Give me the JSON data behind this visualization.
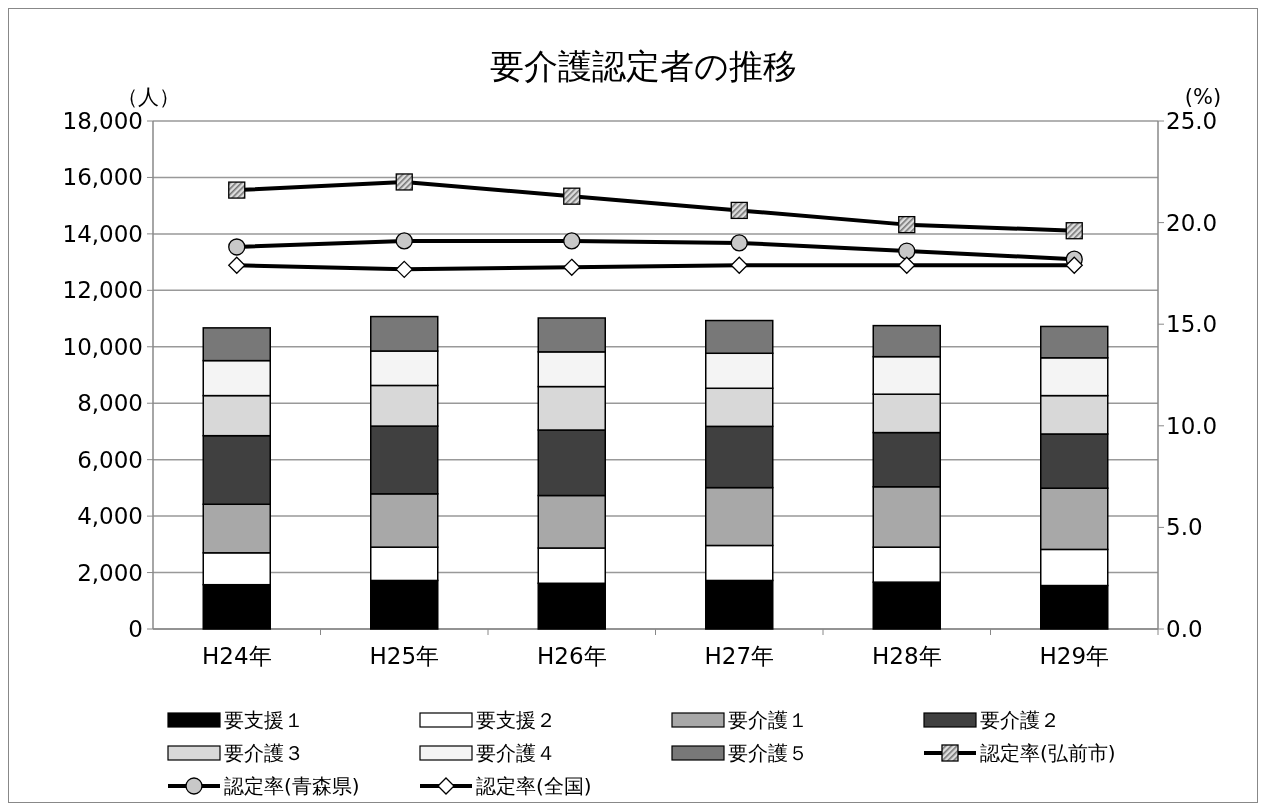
{
  "chart_data": {
    "type": "bar",
    "stacked": true,
    "title": "要介護認定者の推移",
    "ylabel": "（人）",
    "y2label": "(%)",
    "categories": [
      "H24年",
      "H25年",
      "H26年",
      "H27年",
      "H28年",
      "H29年"
    ],
    "ylim": [
      0,
      18000
    ],
    "yticks": [
      {
        "value": 0,
        "label": "0"
      },
      {
        "value": 2000,
        "label": "2,000"
      },
      {
        "value": 4000,
        "label": "4,000"
      },
      {
        "value": 6000,
        "label": "6,000"
      },
      {
        "value": 8000,
        "label": "8,000"
      },
      {
        "value": 10000,
        "label": "10,000"
      },
      {
        "value": 12000,
        "label": "12,000"
      },
      {
        "value": 14000,
        "label": "14,000"
      },
      {
        "value": 16000,
        "label": "16,000"
      },
      {
        "value": 18000,
        "label": "18,000"
      }
    ],
    "y2lim": [
      0,
      25
    ],
    "y2ticks": [
      {
        "value": 0,
        "label": "0.0"
      },
      {
        "value": 5,
        "label": "5.0"
      },
      {
        "value": 10,
        "label": "10.0"
      },
      {
        "value": 15,
        "label": "15.0"
      },
      {
        "value": 20,
        "label": "20.0"
      },
      {
        "value": 25,
        "label": "25.0"
      }
    ],
    "grid": "y",
    "legend": "bottom",
    "series": [
      {
        "name": "要支援１",
        "color": "#000000",
        "values": [
          1570,
          1720,
          1620,
          1720,
          1660,
          1540
        ]
      },
      {
        "name": "要支援２",
        "color": "#ffffff",
        "values": [
          1130,
          1180,
          1250,
          1240,
          1240,
          1280
        ]
      },
      {
        "name": "要介護１",
        "color": "#a8a8a8",
        "values": [
          1720,
          1890,
          1860,
          2050,
          2140,
          2170
        ]
      },
      {
        "name": "要介護２",
        "color": "#404040",
        "values": [
          2430,
          2400,
          2320,
          2170,
          1920,
          1920
        ]
      },
      {
        "name": "要介護３",
        "color": "#d8d8d8",
        "values": [
          1420,
          1440,
          1540,
          1350,
          1360,
          1360
        ]
      },
      {
        "name": "要介護４",
        "color": "#f4f4f4",
        "values": [
          1240,
          1220,
          1230,
          1240,
          1330,
          1340
        ]
      },
      {
        "name": "要介護５",
        "color": "#787878",
        "values": [
          1160,
          1220,
          1200,
          1160,
          1100,
          1110
        ]
      },
      {
        "name": "認定率(弘前市)",
        "type": "line",
        "axis": "y2",
        "color": "#000000",
        "marker": "square",
        "values": [
          21.6,
          22.0,
          21.3,
          20.6,
          19.9,
          19.6
        ]
      },
      {
        "name": "認定率(青森県)",
        "type": "line",
        "axis": "y2",
        "color": "#000000",
        "marker": "circle",
        "values": [
          18.8,
          19.1,
          19.1,
          19.0,
          18.6,
          18.2
        ]
      },
      {
        "name": "認定率(全国)",
        "type": "line",
        "axis": "y2",
        "color": "#000000",
        "marker": "diamond",
        "values": [
          17.9,
          17.7,
          17.8,
          17.9,
          17.9,
          17.9
        ]
      }
    ]
  }
}
